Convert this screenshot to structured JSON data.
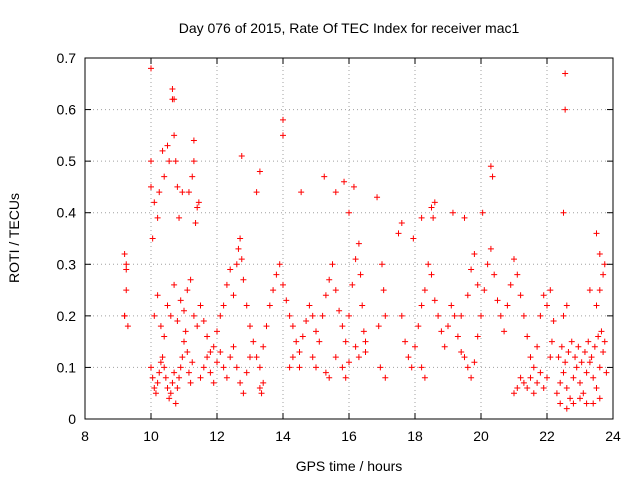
{
  "chart_data": {
    "type": "scatter",
    "title": "Day 076 of 2015, Rate Of TEC Index for receiver mac1",
    "xlabel": "GPS time / hours",
    "ylabel": "ROTI / TECUs",
    "xlim": [
      8,
      24
    ],
    "ylim": [
      0,
      0.7
    ],
    "xticks": [
      "8",
      "10",
      "12",
      "14",
      "16",
      "18",
      "20",
      "22",
      "24"
    ],
    "yticks": [
      "0",
      "0.1",
      "0.2",
      "0.3",
      "0.4",
      "0.5",
      "0.6",
      "0.7"
    ],
    "grid": true,
    "marker": "plus",
    "color": "#ff0000",
    "points": [
      [
        9.2,
        0.32
      ],
      [
        9.25,
        0.29
      ],
      [
        9.25,
        0.25
      ],
      [
        9.2,
        0.2
      ],
      [
        9.3,
        0.18
      ],
      [
        9.2,
        0.2
      ],
      [
        9.25,
        0.3
      ],
      [
        10.0,
        0.68
      ],
      [
        10.0,
        0.5
      ],
      [
        10.0,
        0.45
      ],
      [
        10.05,
        0.35
      ],
      [
        10.1,
        0.42
      ],
      [
        10.2,
        0.39
      ],
      [
        10.25,
        0.44
      ],
      [
        10.35,
        0.52
      ],
      [
        10.4,
        0.47
      ],
      [
        10.5,
        0.53
      ],
      [
        10.55,
        0.5
      ],
      [
        10.65,
        0.64
      ],
      [
        10.65,
        0.62
      ],
      [
        10.7,
        0.62
      ],
      [
        10.7,
        0.55
      ],
      [
        10.75,
        0.5
      ],
      [
        10.8,
        0.45
      ],
      [
        10.85,
        0.39
      ],
      [
        10.95,
        0.44
      ],
      [
        11.3,
        0.54
      ],
      [
        11.3,
        0.5
      ],
      [
        11.25,
        0.47
      ],
      [
        11.15,
        0.44
      ],
      [
        11.4,
        0.41
      ],
      [
        11.35,
        0.38
      ],
      [
        11.45,
        0.42
      ],
      [
        12.75,
        0.51
      ],
      [
        13.3,
        0.48
      ],
      [
        13.2,
        0.44
      ],
      [
        14.0,
        0.58
      ],
      [
        14.0,
        0.55
      ],
      [
        14.55,
        0.44
      ],
      [
        15.25,
        0.47
      ],
      [
        15.6,
        0.44
      ],
      [
        15.85,
        0.46
      ],
      [
        16.0,
        0.4
      ],
      [
        16.15,
        0.45
      ],
      [
        16.85,
        0.43
      ],
      [
        17.6,
        0.38
      ],
      [
        17.5,
        0.36
      ],
      [
        17.95,
        0.35
      ],
      [
        18.2,
        0.39
      ],
      [
        18.5,
        0.41
      ],
      [
        18.55,
        0.39
      ],
      [
        18.6,
        0.42
      ],
      [
        19.15,
        0.4
      ],
      [
        19.5,
        0.39
      ],
      [
        20.05,
        0.4
      ],
      [
        20.3,
        0.49
      ],
      [
        20.35,
        0.47
      ],
      [
        22.55,
        0.67
      ],
      [
        22.55,
        0.6
      ],
      [
        22.5,
        0.4
      ],
      [
        23.5,
        0.36
      ],
      [
        10.0,
        0.1
      ],
      [
        10.05,
        0.08
      ],
      [
        10.1,
        0.06
      ],
      [
        10.15,
        0.05
      ],
      [
        10.2,
        0.07
      ],
      [
        10.25,
        0.09
      ],
      [
        10.3,
        0.11
      ],
      [
        10.35,
        0.12
      ],
      [
        10.4,
        0.1
      ],
      [
        10.45,
        0.08
      ],
      [
        10.5,
        0.06
      ],
      [
        10.55,
        0.04
      ],
      [
        10.6,
        0.05
      ],
      [
        10.65,
        0.07
      ],
      [
        10.7,
        0.09
      ],
      [
        10.75,
        0.03
      ],
      [
        10.8,
        0.06
      ],
      [
        10.85,
        0.08
      ],
      [
        10.9,
        0.1
      ],
      [
        10.95,
        0.12
      ],
      [
        11.0,
        0.15
      ],
      [
        11.05,
        0.17
      ],
      [
        11.1,
        0.13
      ],
      [
        11.15,
        0.09
      ],
      [
        11.2,
        0.07
      ],
      [
        11.25,
        0.11
      ],
      [
        10.1,
        0.2
      ],
      [
        10.2,
        0.24
      ],
      [
        10.3,
        0.18
      ],
      [
        10.4,
        0.16
      ],
      [
        10.5,
        0.22
      ],
      [
        10.6,
        0.2
      ],
      [
        10.7,
        0.26
      ],
      [
        10.8,
        0.19
      ],
      [
        10.9,
        0.23
      ],
      [
        11.0,
        0.21
      ],
      [
        11.1,
        0.25
      ],
      [
        11.2,
        0.27
      ],
      [
        11.3,
        0.2
      ],
      [
        11.4,
        0.18
      ],
      [
        11.5,
        0.22
      ],
      [
        11.6,
        0.19
      ],
      [
        11.7,
        0.16
      ],
      [
        11.8,
        0.13
      ],
      [
        11.9,
        0.14
      ],
      [
        12.0,
        0.17
      ],
      [
        12.1,
        0.2
      ],
      [
        12.2,
        0.22
      ],
      [
        12.3,
        0.26
      ],
      [
        12.4,
        0.29
      ],
      [
        12.5,
        0.24
      ],
      [
        12.6,
        0.3
      ],
      [
        12.65,
        0.33
      ],
      [
        12.7,
        0.35
      ],
      [
        12.75,
        0.31
      ],
      [
        12.8,
        0.27
      ],
      [
        12.9,
        0.22
      ],
      [
        13.0,
        0.18
      ],
      [
        13.1,
        0.15
      ],
      [
        13.2,
        0.12
      ],
      [
        13.3,
        0.1
      ],
      [
        13.4,
        0.14
      ],
      [
        13.5,
        0.18
      ],
      [
        13.6,
        0.22
      ],
      [
        13.7,
        0.25
      ],
      [
        13.8,
        0.28
      ],
      [
        13.9,
        0.3
      ],
      [
        14.0,
        0.26
      ],
      [
        14.1,
        0.23
      ],
      [
        14.2,
        0.2
      ],
      [
        14.3,
        0.18
      ],
      [
        14.4,
        0.15
      ],
      [
        14.5,
        0.13
      ],
      [
        14.6,
        0.16
      ],
      [
        14.7,
        0.19
      ],
      [
        14.8,
        0.22
      ],
      [
        14.9,
        0.2
      ],
      [
        15.0,
        0.17
      ],
      [
        15.1,
        0.15
      ],
      [
        15.2,
        0.2
      ],
      [
        15.3,
        0.24
      ],
      [
        15.4,
        0.27
      ],
      [
        15.5,
        0.3
      ],
      [
        15.6,
        0.25
      ],
      [
        15.7,
        0.21
      ],
      [
        15.8,
        0.18
      ],
      [
        15.9,
        0.15
      ],
      [
        16.0,
        0.2
      ],
      [
        16.1,
        0.26
      ],
      [
        16.2,
        0.31
      ],
      [
        16.3,
        0.34
      ],
      [
        16.35,
        0.28
      ],
      [
        16.4,
        0.22
      ],
      [
        16.45,
        0.17
      ],
      [
        16.5,
        0.13
      ],
      [
        11.5,
        0.08
      ],
      [
        11.6,
        0.1
      ],
      [
        11.7,
        0.12
      ],
      [
        11.8,
        0.09
      ],
      [
        11.9,
        0.07
      ],
      [
        12.0,
        0.11
      ],
      [
        12.1,
        0.13
      ],
      [
        12.2,
        0.1
      ],
      [
        12.3,
        0.08
      ],
      [
        12.4,
        0.12
      ],
      [
        12.5,
        0.14
      ],
      [
        12.6,
        0.1
      ],
      [
        12.7,
        0.07
      ],
      [
        12.8,
        0.05
      ],
      [
        12.9,
        0.09
      ],
      [
        13.0,
        0.12
      ],
      [
        13.3,
        0.06
      ],
      [
        13.35,
        0.05
      ],
      [
        13.4,
        0.07
      ],
      [
        14.2,
        0.1
      ],
      [
        14.3,
        0.12
      ],
      [
        14.5,
        0.1
      ],
      [
        14.9,
        0.12
      ],
      [
        15.0,
        0.1
      ],
      [
        15.3,
        0.09
      ],
      [
        15.4,
        0.08
      ],
      [
        15.6,
        0.12
      ],
      [
        15.8,
        0.1
      ],
      [
        15.9,
        0.08
      ],
      [
        16.0,
        0.11
      ],
      [
        16.2,
        0.14
      ],
      [
        16.3,
        0.12
      ],
      [
        16.5,
        0.15
      ],
      [
        17.0,
        0.3
      ],
      [
        17.05,
        0.25
      ],
      [
        17.1,
        0.2
      ],
      [
        16.9,
        0.18
      ],
      [
        16.95,
        0.1
      ],
      [
        17.1,
        0.08
      ],
      [
        17.6,
        0.2
      ],
      [
        17.7,
        0.15
      ],
      [
        17.8,
        0.12
      ],
      [
        17.9,
        0.1
      ],
      [
        18.0,
        0.14
      ],
      [
        18.1,
        0.18
      ],
      [
        18.2,
        0.22
      ],
      [
        18.3,
        0.25
      ],
      [
        18.4,
        0.3
      ],
      [
        18.5,
        0.28
      ],
      [
        18.6,
        0.23
      ],
      [
        18.7,
        0.2
      ],
      [
        18.8,
        0.17
      ],
      [
        18.9,
        0.14
      ],
      [
        19.0,
        0.18
      ],
      [
        19.1,
        0.22
      ],
      [
        19.2,
        0.2
      ],
      [
        19.3,
        0.16
      ],
      [
        19.4,
        0.13
      ],
      [
        19.5,
        0.12
      ],
      [
        19.6,
        0.1
      ],
      [
        19.7,
        0.08
      ],
      [
        19.8,
        0.11
      ],
      [
        19.9,
        0.16
      ],
      [
        20.0,
        0.2
      ],
      [
        20.1,
        0.25
      ],
      [
        20.2,
        0.3
      ],
      [
        20.3,
        0.33
      ],
      [
        20.4,
        0.28
      ],
      [
        20.5,
        0.23
      ],
      [
        20.6,
        0.2
      ],
      [
        20.7,
        0.17
      ],
      [
        20.8,
        0.22
      ],
      [
        20.9,
        0.26
      ],
      [
        21.0,
        0.31
      ],
      [
        21.1,
        0.28
      ],
      [
        21.2,
        0.24
      ],
      [
        21.3,
        0.2
      ],
      [
        21.4,
        0.16
      ],
      [
        21.5,
        0.12
      ],
      [
        21.6,
        0.1
      ],
      [
        21.7,
        0.14
      ],
      [
        21.8,
        0.2
      ],
      [
        21.9,
        0.24
      ],
      [
        22.0,
        0.22
      ],
      [
        22.1,
        0.25
      ],
      [
        22.2,
        0.19
      ],
      [
        18.2,
        0.1
      ],
      [
        18.3,
        0.08
      ],
      [
        19.4,
        0.2
      ],
      [
        19.6,
        0.24
      ],
      [
        19.7,
        0.29
      ],
      [
        19.8,
        0.32
      ],
      [
        19.9,
        0.26
      ],
      [
        21.0,
        0.05
      ],
      [
        21.1,
        0.06
      ],
      [
        21.2,
        0.08
      ],
      [
        21.3,
        0.07
      ],
      [
        21.4,
        0.06
      ],
      [
        21.5,
        0.08
      ],
      [
        21.6,
        0.05
      ],
      [
        21.7,
        0.07
      ],
      [
        21.8,
        0.09
      ],
      [
        21.9,
        0.06
      ],
      [
        22.0,
        0.08
      ],
      [
        22.1,
        0.12
      ],
      [
        22.15,
        0.15
      ],
      [
        22.3,
        0.05
      ],
      [
        22.4,
        0.07
      ],
      [
        22.5,
        0.09
      ],
      [
        22.6,
        0.06
      ],
      [
        22.7,
        0.04
      ],
      [
        22.8,
        0.08
      ],
      [
        22.9,
        0.1
      ],
      [
        23.0,
        0.07
      ],
      [
        23.1,
        0.05
      ],
      [
        23.2,
        0.09
      ],
      [
        23.3,
        0.11
      ],
      [
        23.4,
        0.08
      ],
      [
        23.5,
        0.06
      ],
      [
        23.6,
        0.1
      ],
      [
        23.7,
        0.13
      ],
      [
        23.8,
        0.09
      ],
      [
        22.35,
        0.12
      ],
      [
        22.45,
        0.14
      ],
      [
        22.55,
        0.11
      ],
      [
        22.65,
        0.13
      ],
      [
        22.75,
        0.15
      ],
      [
        22.85,
        0.12
      ],
      [
        22.95,
        0.14
      ],
      [
        23.05,
        0.11
      ],
      [
        23.15,
        0.13
      ],
      [
        23.25,
        0.15
      ],
      [
        23.35,
        0.12
      ],
      [
        23.45,
        0.14
      ],
      [
        23.55,
        0.16
      ],
      [
        23.65,
        0.17
      ],
      [
        23.75,
        0.15
      ],
      [
        22.4,
        0.03
      ],
      [
        22.6,
        0.02
      ],
      [
        22.8,
        0.03
      ],
      [
        23.0,
        0.04
      ],
      [
        23.2,
        0.03
      ],
      [
        23.4,
        0.03
      ],
      [
        23.6,
        0.04
      ],
      [
        22.5,
        0.2
      ],
      [
        22.6,
        0.22
      ],
      [
        23.5,
        0.22
      ],
      [
        23.6,
        0.25
      ],
      [
        23.7,
        0.28
      ],
      [
        23.75,
        0.3
      ],
      [
        23.6,
        0.32
      ],
      [
        23.3,
        0.25
      ]
    ]
  }
}
